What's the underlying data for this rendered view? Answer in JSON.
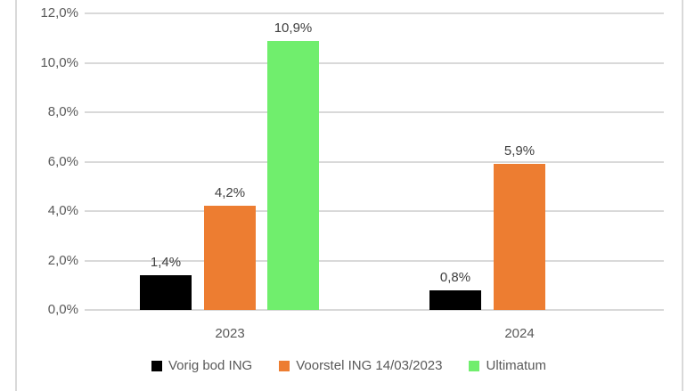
{
  "chart_data": {
    "type": "bar",
    "title": "",
    "xlabel": "",
    "ylabel": "",
    "categories": [
      "2023",
      "2024"
    ],
    "series": [
      {
        "name": "Vorig bod ING",
        "color": "#000000",
        "values": [
          1.4,
          0.8
        ],
        "labels": [
          "1,4%",
          "0,8%"
        ]
      },
      {
        "name": "Voorstel ING 14/03/2023",
        "color": "#ed7d31",
        "values": [
          4.2,
          5.9
        ],
        "labels": [
          "4,2%",
          "5,9%"
        ]
      },
      {
        "name": "Ultimatum",
        "color": "#70ee6d",
        "values": [
          10.9,
          null
        ],
        "labels": [
          "10,9%",
          null
        ]
      }
    ],
    "ylim": [
      0,
      12
    ],
    "ytick_step": 2,
    "ytick_labels": [
      "0,0%",
      "2,0%",
      "4,0%",
      "6,0%",
      "8,0%",
      "10,0%",
      "12,0%"
    ],
    "grid": true,
    "legend_position": "bottom"
  },
  "colors": {
    "gridline": "#d9d9d9",
    "frame_border": "#d9d9d9",
    "axis_text": "#595959",
    "data_label_text": "#404040"
  }
}
